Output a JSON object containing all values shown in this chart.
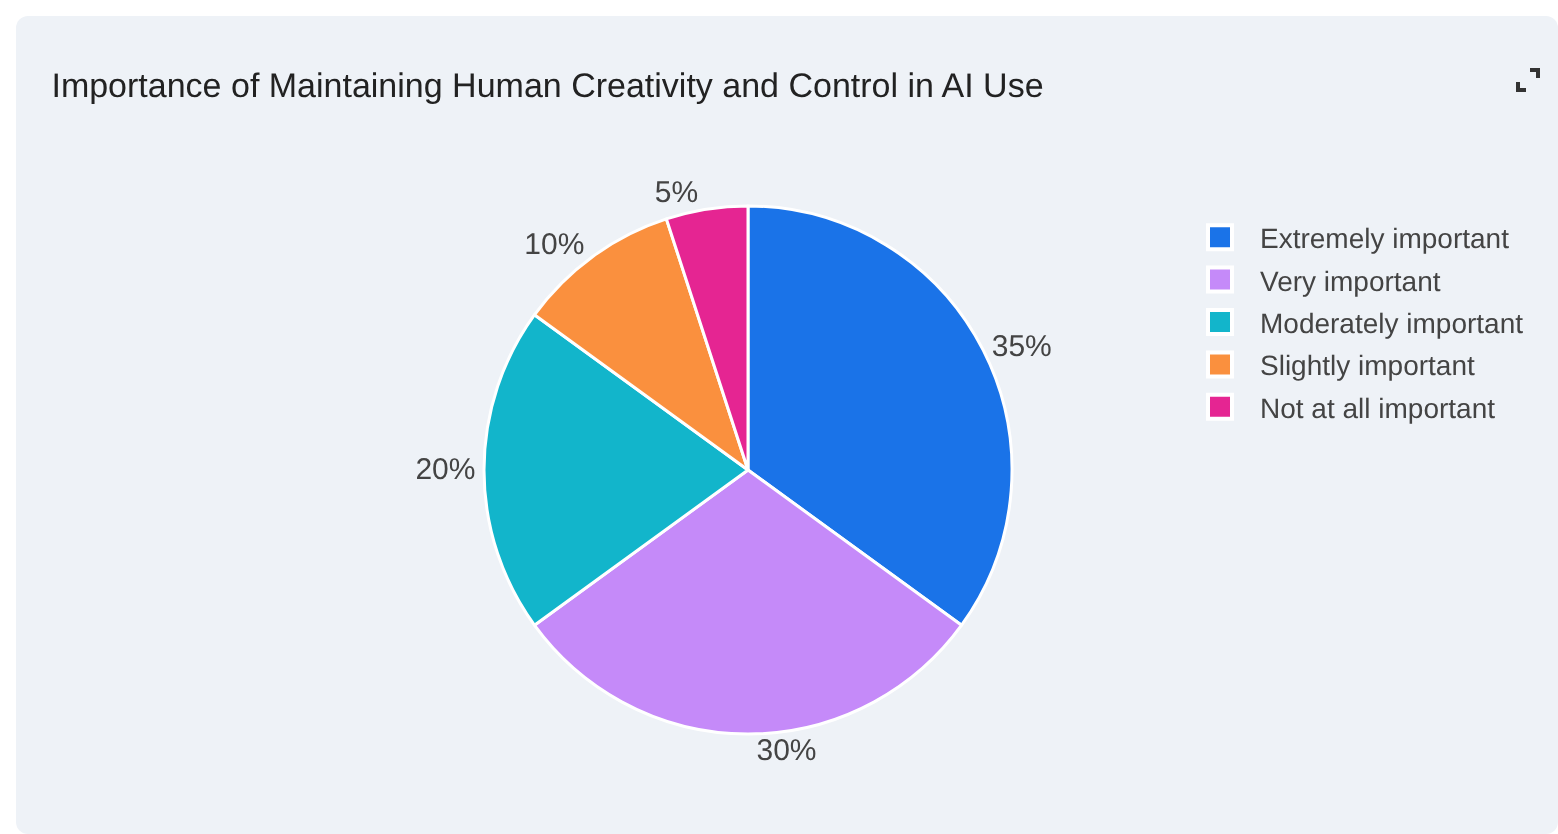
{
  "chart_data": {
    "type": "pie",
    "title": "Importance of Maintaining Human Creativity and Control in AI Use",
    "categories": [
      "Extremely important",
      "Very important",
      "Moderately important",
      "Slightly important",
      "Not at all important"
    ],
    "values": [
      35,
      30,
      20,
      10,
      5
    ],
    "value_labels": [
      "35%",
      "30%",
      "20%",
      "10%",
      "5%"
    ],
    "colors": [
      "#1a73e8",
      "#c58af9",
      "#12b5cb",
      "#fa903e",
      "#e52592"
    ],
    "legend": "top right"
  }
}
